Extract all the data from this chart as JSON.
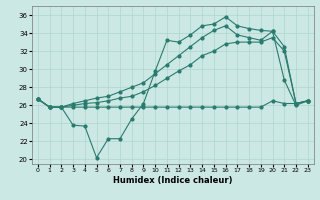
{
  "xlabel": "Humidex (Indice chaleur)",
  "xlim": [
    -0.5,
    23.5
  ],
  "ylim": [
    19.5,
    37
  ],
  "yticks": [
    20,
    22,
    24,
    26,
    28,
    30,
    32,
    34,
    36
  ],
  "xticks": [
    0,
    1,
    2,
    3,
    4,
    5,
    6,
    7,
    8,
    9,
    10,
    11,
    12,
    13,
    14,
    15,
    16,
    17,
    18,
    19,
    20,
    21,
    22,
    23
  ],
  "line_color": "#2a7b6f",
  "bg_color": "#cce8e4",
  "grid_color": "#aed4ce",
  "series": {
    "line1_max": [
      26.7,
      25.8,
      25.8,
      23.8,
      23.7,
      20.2,
      22.3,
      22.3,
      24.5,
      26.2,
      29.8,
      33.2,
      33.0,
      33.8,
      34.8,
      35.0,
      35.8,
      34.8,
      34.5,
      34.3,
      34.2,
      28.8,
      26.0,
      26.5
    ],
    "line2_high": [
      26.7,
      25.8,
      25.8,
      26.2,
      26.5,
      26.8,
      27.0,
      27.5,
      28.0,
      28.5,
      29.5,
      30.5,
      31.5,
      32.5,
      33.5,
      34.3,
      34.8,
      33.8,
      33.5,
      33.2,
      34.2,
      32.5,
      26.2,
      26.5
    ],
    "line3_mid": [
      26.7,
      25.8,
      25.8,
      26.0,
      26.2,
      26.3,
      26.5,
      26.8,
      27.0,
      27.5,
      28.2,
      29.0,
      29.8,
      30.5,
      31.5,
      32.0,
      32.8,
      33.0,
      33.0,
      33.0,
      33.5,
      32.0,
      26.2,
      26.5
    ],
    "line4_min": [
      26.7,
      25.8,
      25.8,
      25.8,
      25.8,
      25.8,
      25.8,
      25.8,
      25.8,
      25.8,
      25.8,
      25.8,
      25.8,
      25.8,
      25.8,
      25.8,
      25.8,
      25.8,
      25.8,
      25.8,
      26.5,
      26.2,
      26.2,
      26.5
    ]
  }
}
